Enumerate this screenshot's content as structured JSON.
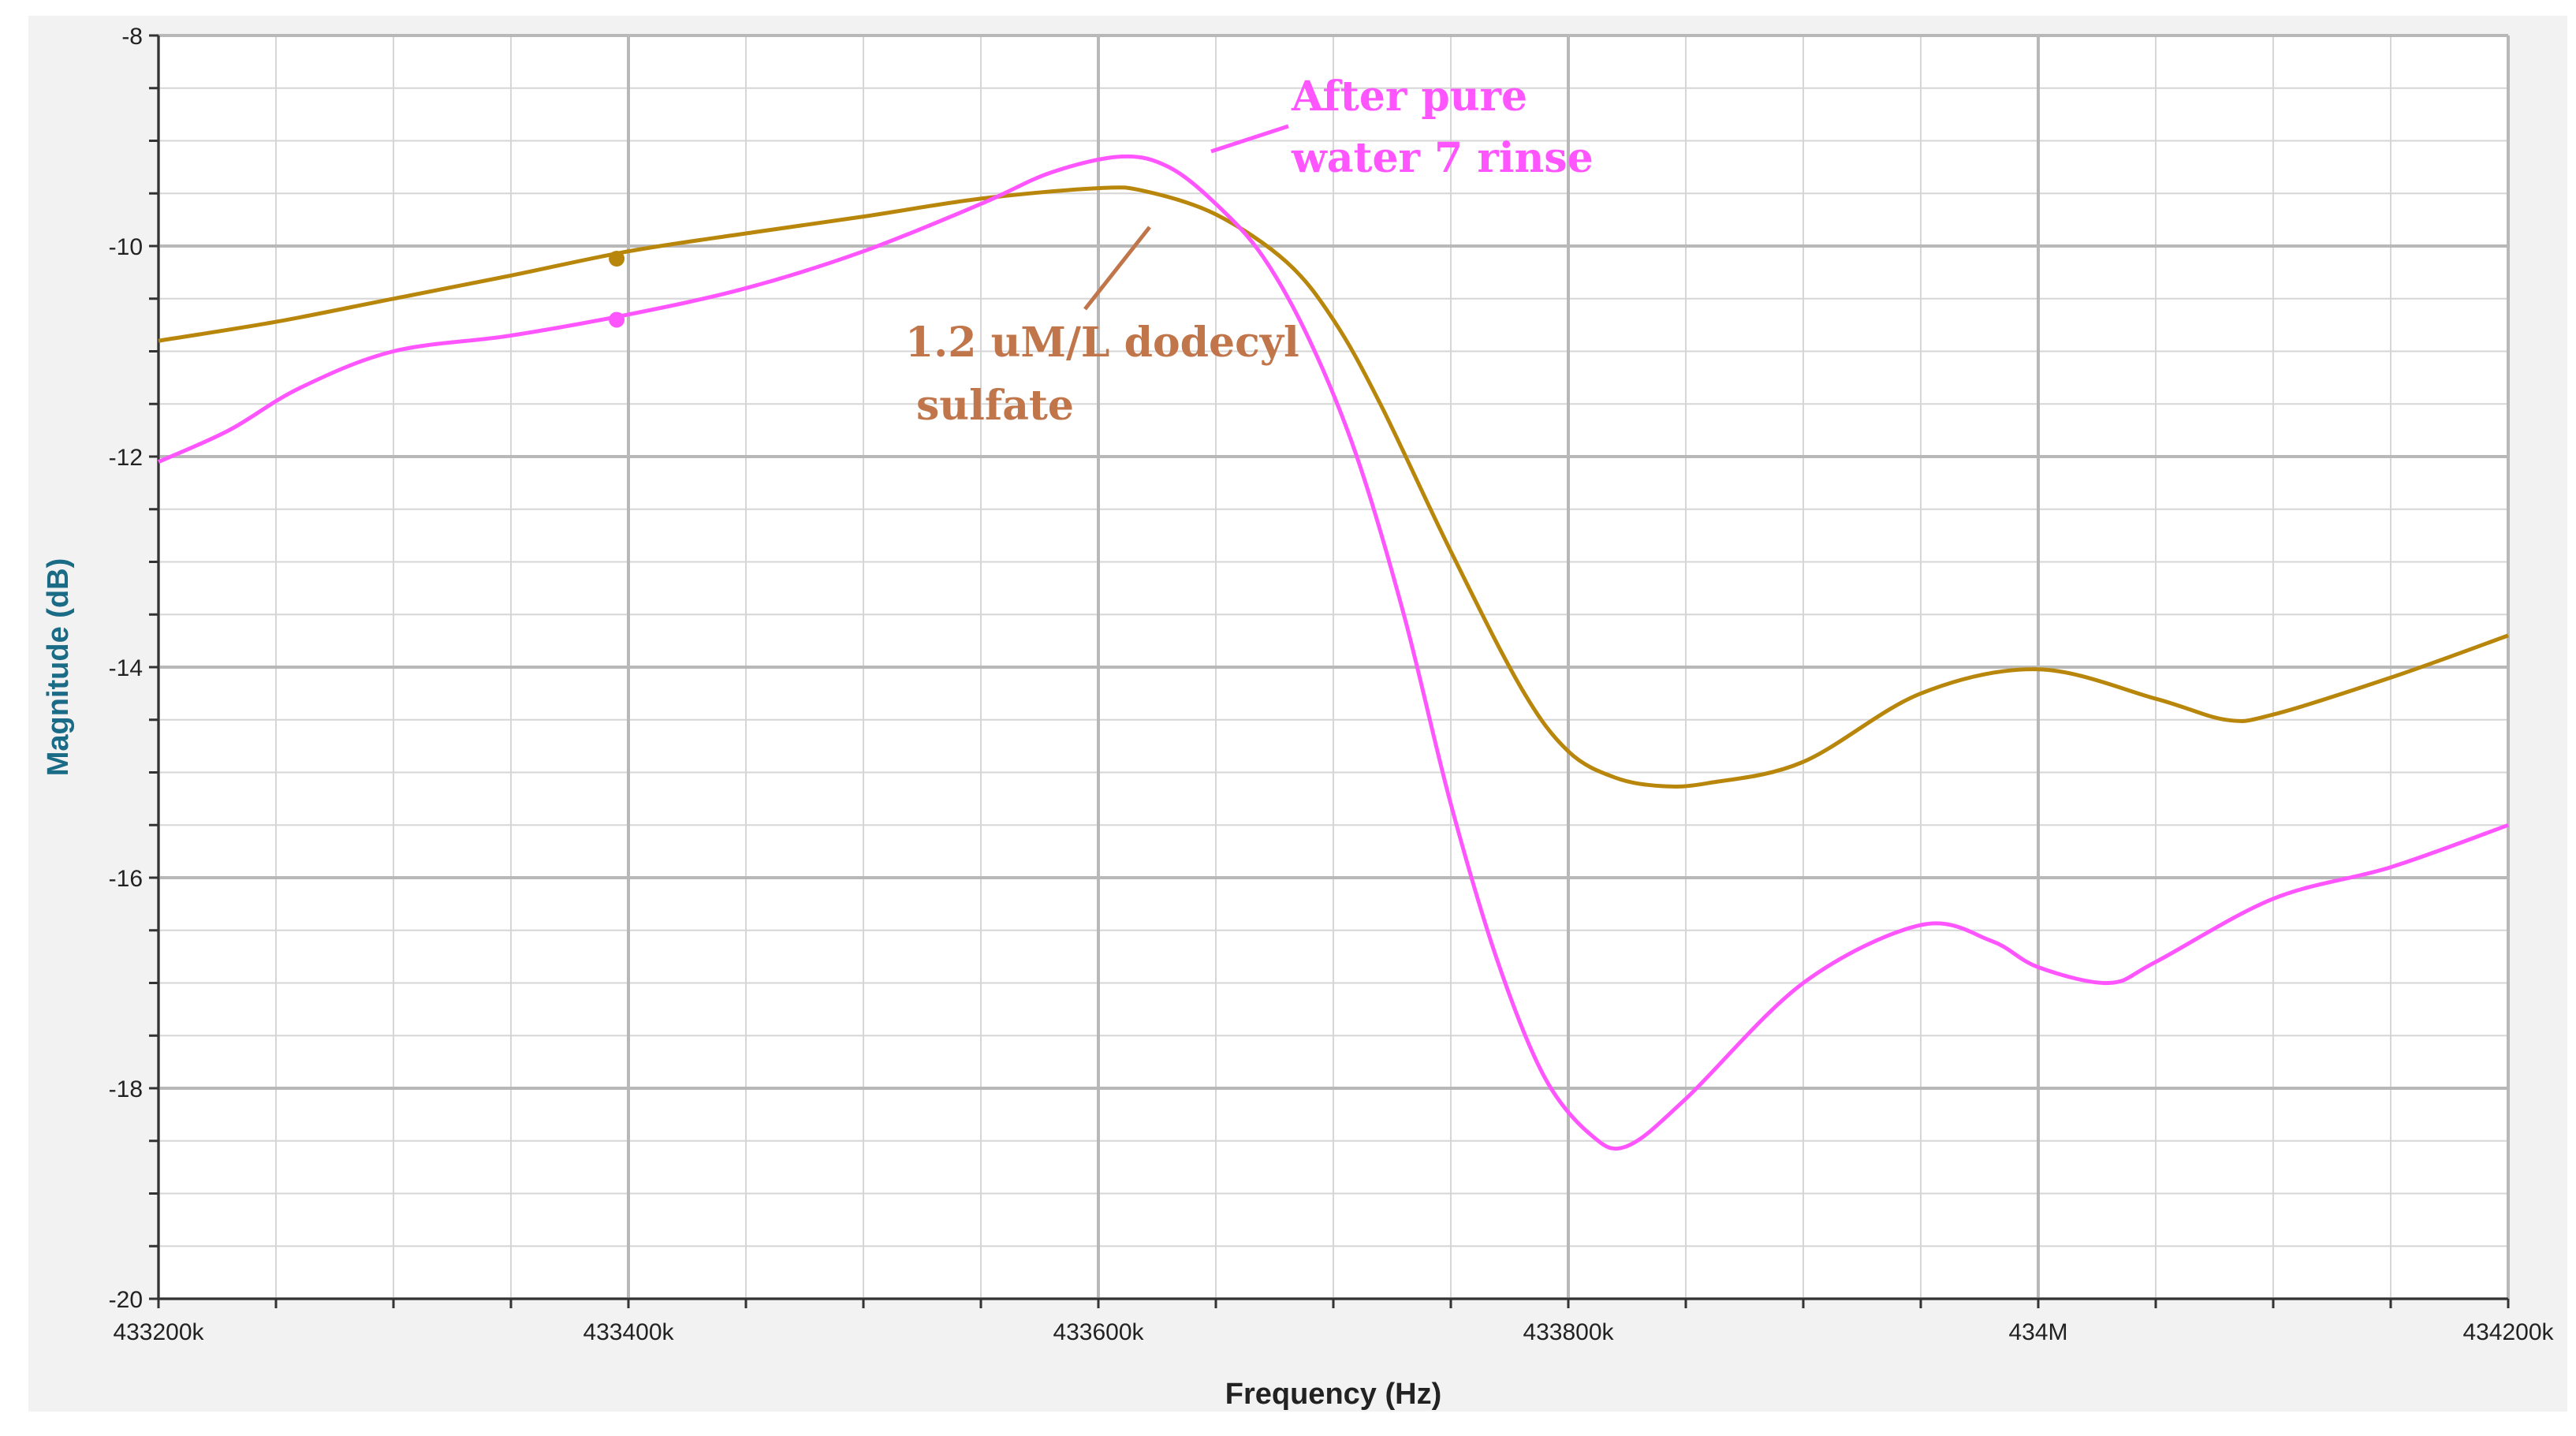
{
  "chart_data": {
    "type": "line",
    "xlabel": "Frequency (Hz)",
    "ylabel": "Magnitude (dB)",
    "xlim": [
      433200000,
      434200000
    ],
    "ylim": [
      -20,
      -8
    ],
    "grid": true,
    "x_ticks": [
      {
        "value": 433200000,
        "label": "433200k"
      },
      {
        "value": 433400000,
        "label": "433400k"
      },
      {
        "value": 433600000,
        "label": "433600k"
      },
      {
        "value": 433800000,
        "label": "433800k"
      },
      {
        "value": 434000000,
        "label": "434M"
      },
      {
        "value": 434200000,
        "label": "434200k"
      }
    ],
    "y_ticks": [
      {
        "value": -8,
        "label": "-8"
      },
      {
        "value": -10,
        "label": "-10"
      },
      {
        "value": -12,
        "label": "-12"
      },
      {
        "value": -14,
        "label": "-14"
      },
      {
        "value": -16,
        "label": "-16"
      },
      {
        "value": -18,
        "label": "-18"
      },
      {
        "value": -20,
        "label": "-20"
      }
    ],
    "series": [
      {
        "name": "1.2 uM/L dodecyl sulfate",
        "color": "#b8860b",
        "marker": {
          "x": 433395000,
          "y": -10.12
        },
        "x": [
          433200000,
          433250000,
          433300000,
          433350000,
          433400000,
          433450000,
          433500000,
          433550000,
          433600000,
          433620000,
          433650000,
          433680000,
          433700000,
          433720000,
          433750000,
          433780000,
          433800000,
          433820000,
          433840000,
          433860000,
          433900000,
          433950000,
          434000000,
          434050000,
          434080000,
          434100000,
          434150000,
          434200000
        ],
        "y": [
          -10.9,
          -10.72,
          -10.5,
          -10.28,
          -10.05,
          -9.88,
          -9.72,
          -9.55,
          -9.45,
          -9.48,
          -9.7,
          -10.15,
          -10.7,
          -11.5,
          -12.9,
          -14.2,
          -14.8,
          -15.05,
          -15.13,
          -15.1,
          -14.9,
          -14.25,
          -14.02,
          -14.3,
          -14.5,
          -14.45,
          -14.1,
          -13.7
        ]
      },
      {
        "name": "After pure water 7 rinse",
        "color": "#ff55ff",
        "marker": {
          "x": 433395000,
          "y": -10.7
        },
        "x": [
          433200000,
          433230000,
          433260000,
          433300000,
          433350000,
          433400000,
          433450000,
          433500000,
          433550000,
          433580000,
          433610000,
          433630000,
          433650000,
          433670000,
          433690000,
          433710000,
          433730000,
          433750000,
          433770000,
          433790000,
          433810000,
          433825000,
          433850000,
          433900000,
          433950000,
          433980000,
          434000000,
          434030000,
          434050000,
          434100000,
          434150000,
          434200000
        ],
        "y": [
          -12.05,
          -11.75,
          -11.35,
          -11.0,
          -10.85,
          -10.65,
          -10.4,
          -10.05,
          -9.6,
          -9.3,
          -9.15,
          -9.25,
          -9.6,
          -10.1,
          -10.9,
          -12.0,
          -13.5,
          -15.3,
          -16.8,
          -17.9,
          -18.45,
          -18.55,
          -18.1,
          -17.0,
          -16.45,
          -16.6,
          -16.85,
          -17.0,
          -16.8,
          -16.2,
          -15.9,
          -15.5
        ]
      }
    ],
    "annotations": [
      {
        "text_lines": [
          "After pure",
          "water 7 rinse"
        ],
        "color": "#ff55ff"
      },
      {
        "text_lines": [
          "1.2 uM/L dodecyl",
          "sulfate"
        ],
        "color": "#c0764a"
      }
    ],
    "colors": {
      "axis_title_y": "#1a6b86",
      "axis_title_x": "#222222",
      "grid_major": "#b8b8b8",
      "grid_minor": "#d6d6d6",
      "background": "#f2f2f2"
    }
  }
}
